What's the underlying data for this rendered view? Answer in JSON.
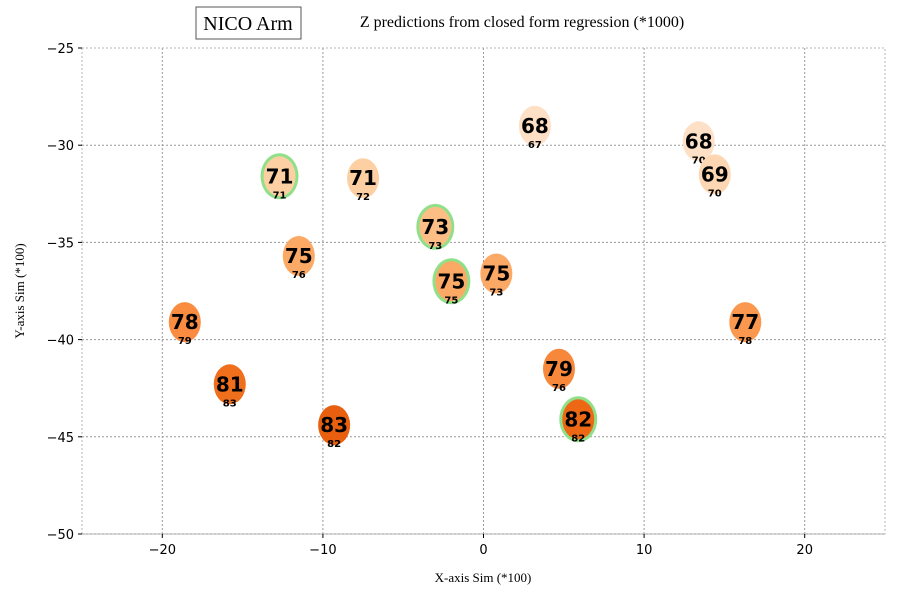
{
  "chart_data": {
    "type": "scatter",
    "title": "Z predictions from closed form regression (*1000)",
    "legend": "NICO Arm",
    "legend_placement": "top-left",
    "xlabel": "X-axis Sim (*100)",
    "ylabel": "Y-axis Sim (*100)",
    "xlim": [
      -25,
      25
    ],
    "ylim": [
      -50,
      -25
    ],
    "xticks": [
      -20,
      -10,
      0,
      10,
      20
    ],
    "yticks": [
      -25,
      -30,
      -35,
      -40,
      -45,
      -50
    ],
    "xtick_labels": [
      "−20",
      "−10",
      "0",
      "10",
      "20"
    ],
    "ytick_labels": [
      "−25",
      "−30",
      "−35",
      "−40",
      "−45",
      "−50"
    ],
    "grid": true,
    "points": [
      {
        "x": 3.2,
        "y": -29.0,
        "pred": "68",
        "actual": "67",
        "color": "#fde0c5",
        "highlight": false
      },
      {
        "x": 13.4,
        "y": -29.8,
        "pred": "68",
        "actual": "70",
        "color": "#fde0c5",
        "highlight": false
      },
      {
        "x": 14.4,
        "y": -31.5,
        "pred": "69",
        "actual": "70",
        "color": "#fdd7b4",
        "highlight": false
      },
      {
        "x": -12.7,
        "y": -31.6,
        "pred": "71",
        "actual": "71",
        "color": "#fdd0a3",
        "highlight": true
      },
      {
        "x": -7.5,
        "y": -31.7,
        "pred": "71",
        "actual": "72",
        "color": "#fdd0a3",
        "highlight": false
      },
      {
        "x": -3.0,
        "y": -34.2,
        "pred": "73",
        "actual": "73",
        "color": "#fdbe86",
        "highlight": true
      },
      {
        "x": -11.5,
        "y": -35.7,
        "pred": "75",
        "actual": "76",
        "color": "#fda966",
        "highlight": false
      },
      {
        "x": -2.0,
        "y": -37.0,
        "pred": "75",
        "actual": "75",
        "color": "#fda966",
        "highlight": true
      },
      {
        "x": 0.8,
        "y": -36.6,
        "pred": "75",
        "actual": "73",
        "color": "#fda966",
        "highlight": false
      },
      {
        "x": -18.6,
        "y": -39.1,
        "pred": "78",
        "actual": "79",
        "color": "#f98c41",
        "highlight": false
      },
      {
        "x": 16.3,
        "y": -39.1,
        "pred": "77",
        "actual": "78",
        "color": "#fb9850",
        "highlight": false
      },
      {
        "x": -15.8,
        "y": -42.3,
        "pred": "81",
        "actual": "83",
        "color": "#ef6f1c",
        "highlight": false
      },
      {
        "x": 4.7,
        "y": -41.5,
        "pred": "79",
        "actual": "76",
        "color": "#f7873a",
        "highlight": false
      },
      {
        "x": -9.3,
        "y": -44.4,
        "pred": "83",
        "actual": "82",
        "color": "#e8600f",
        "highlight": false
      },
      {
        "x": 5.9,
        "y": -44.1,
        "pred": "82",
        "actual": "82",
        "color": "#ec6815",
        "highlight": true
      }
    ],
    "colors": {
      "highlight_ring": "#90e08a",
      "grid": "#9a9a9a"
    }
  }
}
